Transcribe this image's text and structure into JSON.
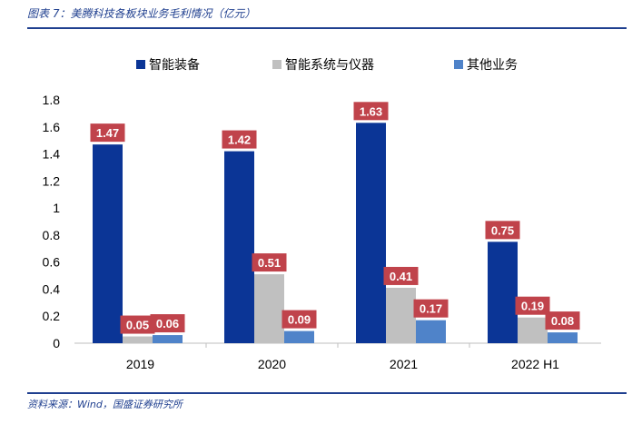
{
  "figure_title": "图表 7：美腾科技各板块业务毛利情况（亿元）",
  "source_note": "资料来源：Wind，国盛证券研究所",
  "chart_data": {
    "type": "bar",
    "categories": [
      "2019",
      "2020",
      "2021",
      "2022 H1"
    ],
    "series": [
      {
        "name": "智能装备",
        "values": [
          1.47,
          1.42,
          1.63,
          0.75
        ],
        "color": "#0b3596"
      },
      {
        "name": "智能系统与仪器",
        "values": [
          0.05,
          0.51,
          0.41,
          0.19
        ],
        "color": "#c0c0c0"
      },
      {
        "name": "其他业务",
        "values": [
          0.06,
          0.09,
          0.17,
          0.08
        ],
        "color": "#4f83c9"
      }
    ],
    "ylim": [
      0,
      1.8
    ],
    "yticks": [
      "0",
      "0.2",
      "0.4",
      "0.6",
      "0.8",
      "1",
      "1.2",
      "1.4",
      "1.6",
      "1.8"
    ],
    "data_labels": [
      [
        "1.47",
        "1.42",
        "1.63",
        "0.75"
      ],
      [
        "0.05",
        "0.51",
        "0.41",
        "0.19"
      ],
      [
        "0.06",
        "0.09",
        "0.17",
        "0.08"
      ]
    ],
    "label_color": "#c0434b",
    "legend_position": "top",
    "grid": false
  }
}
